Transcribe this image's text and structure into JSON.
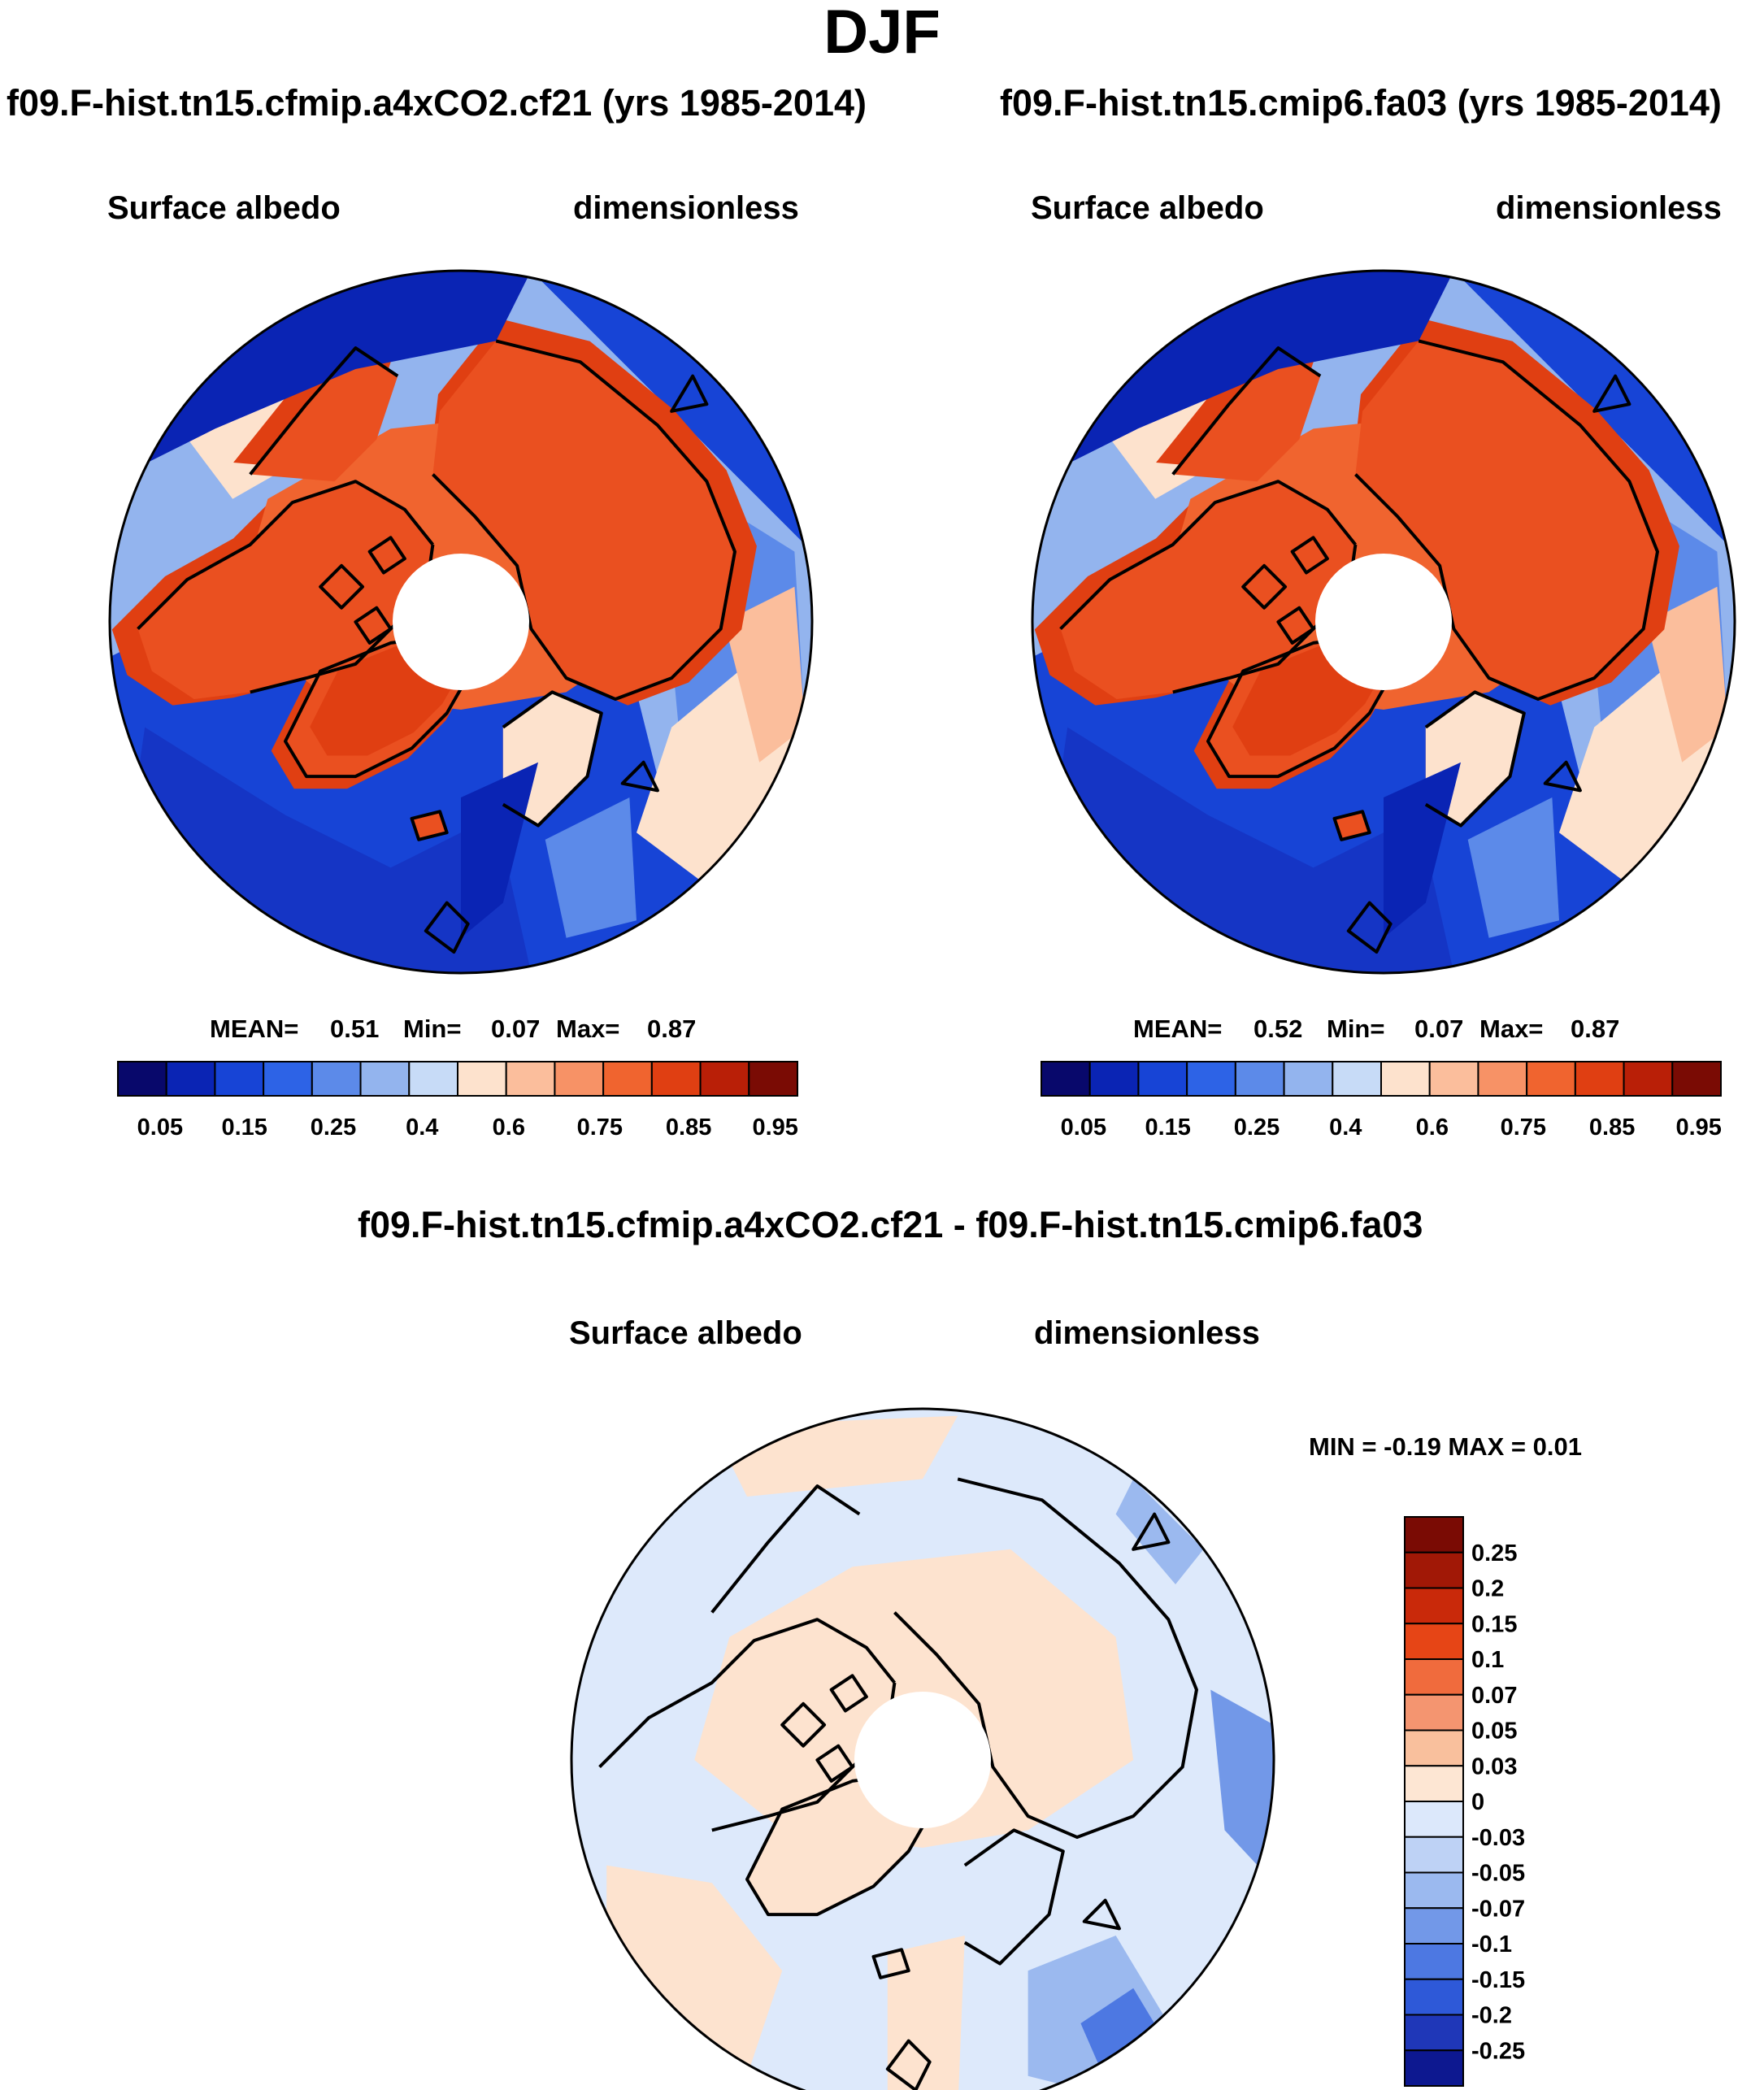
{
  "title": "DJF",
  "colors": {
    "levels14": [
      "#08086b",
      "#0a24b4",
      "#1744d6",
      "#2d63e6",
      "#5c8ae9",
      "#93b4ee",
      "#c7dbf7",
      "#fde2cd",
      "#fbbe9c",
      "#f79266",
      "#f0642f",
      "#e03f12",
      "#b91f07",
      "#7a0b04"
    ],
    "levels16": [
      "#7a0b04",
      "#a11806",
      "#c9290a",
      "#e64516",
      "#f06b3d",
      "#f49570",
      "#f9c09d",
      "#fde6d3",
      "#dce8fb",
      "#bed2f5",
      "#9bb9ef",
      "#7298e8",
      "#4d78e2",
      "#2e59d8",
      "#1f37b8",
      "#0d1890"
    ],
    "ocean": "#1535c5",
    "land": "#ea5020",
    "diff_base": "#dde9fb",
    "diff_pos": "#fde3cf"
  },
  "panels": [
    {
      "case": "f09.F-hist.tn15.cfmip.a4xCO2.cf21 (yrs 1985-2014)",
      "variable": "Surface albedo",
      "units": "dimensionless",
      "mean_label": "MEAN=",
      "mean": "0.51",
      "min_label": "Min=",
      "min": "0.07",
      "max_label": "Max=",
      "max": "0.87",
      "ticks": [
        "0.05",
        "0.15",
        "0.25",
        "0.4",
        "0.6",
        "0.75",
        "0.85",
        "0.95"
      ]
    },
    {
      "case": "f09.F-hist.tn15.cmip6.fa03 (yrs 1985-2014)",
      "variable": "Surface albedo",
      "units": "dimensionless",
      "mean_label": "MEAN=",
      "mean": "0.52",
      "min_label": "Min=",
      "min": "0.07",
      "max_label": "Max=",
      "max": "0.87",
      "ticks": [
        "0.05",
        "0.15",
        "0.25",
        "0.4",
        "0.6",
        "0.75",
        "0.85",
        "0.95"
      ]
    }
  ],
  "diff": {
    "title": "f09.F-hist.tn15.cfmip.a4xCO2.cf21 - f09.F-hist.tn15.cmip6.fa03",
    "variable": "Surface albedo",
    "units": "dimensionless",
    "minmax": "MIN =  -0.19 MAX =   0.01",
    "ticks": [
      "0.25",
      "0.2",
      "0.15",
      "0.1",
      "0.07",
      "0.05",
      "0.03",
      "0",
      "-0.03",
      "-0.05",
      "-0.07",
      "-0.1",
      "-0.15",
      "-0.2",
      "-0.25"
    ]
  }
}
